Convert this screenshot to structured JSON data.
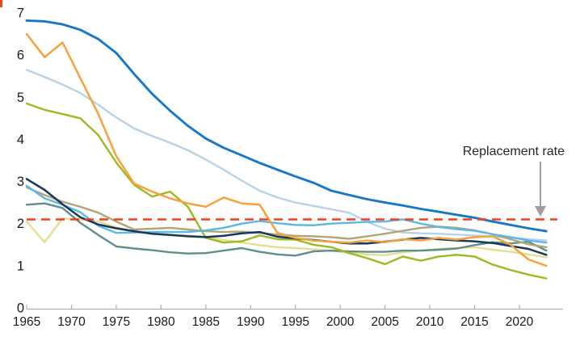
{
  "chart_data": {
    "type": "line",
    "title": "",
    "xlabel": "",
    "ylabel": "",
    "ylim": [
      0,
      7
    ],
    "xlim": [
      1965,
      2023
    ],
    "grid": false,
    "legend": "none",
    "y_ticks": [
      0,
      1,
      2,
      3,
      4,
      5,
      6,
      7
    ],
    "x_ticks": [
      1965,
      1970,
      1975,
      1980,
      1985,
      1990,
      1995,
      2000,
      2005,
      2010,
      2015,
      2020
    ],
    "x": [
      1965,
      1967,
      1969,
      1971,
      1973,
      1975,
      1977,
      1979,
      1981,
      1983,
      1985,
      1987,
      1989,
      1991,
      1993,
      1995,
      1997,
      1999,
      2001,
      2003,
      2005,
      2007,
      2009,
      2011,
      2013,
      2015,
      2017,
      2019,
      2021,
      2023
    ],
    "series": [
      {
        "name": "light-blue",
        "color": "#B7D2E8",
        "width": 2.4,
        "values": [
          5.65,
          5.48,
          5.3,
          5.1,
          4.82,
          4.52,
          4.26,
          4.08,
          3.92,
          3.74,
          3.52,
          3.28,
          3.02,
          2.78,
          2.62,
          2.5,
          2.42,
          2.34,
          2.26,
          2.04,
          1.88,
          1.79,
          1.77,
          1.76,
          1.74,
          1.72,
          1.7,
          1.67,
          1.63,
          1.6
        ]
      },
      {
        "name": "pale-yellow",
        "color": "#E5DF92",
        "width": 2.4,
        "values": [
          2.05,
          1.56,
          2.12,
          2.1,
          2.05,
          1.91,
          1.81,
          1.77,
          1.74,
          1.72,
          1.69,
          1.61,
          1.55,
          1.49,
          1.44,
          1.42,
          1.39,
          1.35,
          1.31,
          1.27,
          1.25,
          1.32,
          1.36,
          1.4,
          1.42,
          1.44,
          1.38,
          1.33,
          1.27,
          1.2
        ]
      },
      {
        "name": "teal",
        "color": "#5F8E8D",
        "width": 2.4,
        "values": [
          2.45,
          2.48,
          2.37,
          2.02,
          1.73,
          1.46,
          1.41,
          1.37,
          1.32,
          1.29,
          1.3,
          1.36,
          1.42,
          1.33,
          1.27,
          1.24,
          1.34,
          1.36,
          1.34,
          1.33,
          1.33,
          1.36,
          1.36,
          1.38,
          1.41,
          1.49,
          1.56,
          1.53,
          1.57,
          1.36
        ]
      },
      {
        "name": "tan",
        "color": "#B4A473",
        "width": 2.4,
        "values": [
          2.86,
          2.68,
          2.52,
          2.4,
          2.26,
          2.05,
          1.86,
          1.88,
          1.9,
          1.86,
          1.82,
          1.8,
          1.81,
          1.78,
          1.74,
          1.71,
          1.7,
          1.68,
          1.64,
          1.7,
          1.76,
          1.83,
          1.9,
          1.93,
          1.9,
          1.84,
          1.75,
          1.63,
          1.51,
          1.44
        ]
      },
      {
        "name": "olive-green",
        "color": "#9CBA21",
        "width": 2.4,
        "values": [
          4.85,
          4.7,
          4.6,
          4.5,
          4.1,
          3.45,
          2.92,
          2.64,
          2.76,
          2.4,
          1.66,
          1.55,
          1.58,
          1.72,
          1.63,
          1.62,
          1.5,
          1.44,
          1.3,
          1.18,
          1.04,
          1.22,
          1.12,
          1.22,
          1.26,
          1.22,
          1.03,
          0.9,
          0.79,
          0.7
        ]
      },
      {
        "name": "sky-blue",
        "color": "#5BB8E6",
        "width": 2.4,
        "values": [
          2.9,
          2.6,
          2.45,
          2.27,
          1.95,
          1.78,
          1.79,
          1.8,
          1.8,
          1.8,
          1.84,
          1.9,
          2.0,
          2.06,
          2.01,
          1.97,
          1.96,
          2.0,
          2.02,
          2.04,
          2.05,
          2.1,
          2.0,
          1.92,
          1.87,
          1.83,
          1.75,
          1.68,
          1.6,
          1.55
        ]
      },
      {
        "name": "navy",
        "color": "#17375E",
        "width": 2.5,
        "values": [
          3.06,
          2.8,
          2.46,
          2.15,
          1.98,
          1.89,
          1.82,
          1.76,
          1.73,
          1.7,
          1.68,
          1.71,
          1.77,
          1.8,
          1.69,
          1.65,
          1.61,
          1.57,
          1.53,
          1.53,
          1.57,
          1.62,
          1.66,
          1.63,
          1.6,
          1.58,
          1.54,
          1.47,
          1.4,
          1.26
        ]
      },
      {
        "name": "orange",
        "color": "#F8A13C",
        "width": 2.5,
        "values": [
          6.5,
          5.95,
          6.3,
          5.45,
          4.6,
          3.6,
          2.95,
          2.76,
          2.6,
          2.48,
          2.4,
          2.62,
          2.48,
          2.45,
          1.78,
          1.66,
          1.6,
          1.57,
          1.55,
          1.6,
          1.56,
          1.63,
          1.6,
          1.66,
          1.62,
          1.68,
          1.7,
          1.5,
          1.15,
          1.0
        ]
      },
      {
        "name": "dark-blue",
        "color": "#1878C8",
        "width": 2.9,
        "values": [
          6.82,
          6.8,
          6.73,
          6.6,
          6.38,
          6.05,
          5.55,
          5.08,
          4.68,
          4.32,
          4.02,
          3.8,
          3.62,
          3.44,
          3.28,
          3.12,
          2.97,
          2.78,
          2.68,
          2.58,
          2.5,
          2.43,
          2.35,
          2.28,
          2.21,
          2.14,
          2.05,
          1.97,
          1.89,
          1.82
        ]
      }
    ],
    "reference_line": {
      "label": "Replacement rate",
      "value": 2.1,
      "color": "#F23F1D",
      "style": "dashed"
    }
  },
  "annotation": {
    "label": "Replacement rate",
    "arrow": "down-arrow",
    "arrow_color": "#9E9E9E"
  },
  "axis": {
    "line_color": "#B0B0B0",
    "label_color": "#1a1a1a"
  },
  "ui": {
    "corner_artifact_color": "#E8471F"
  }
}
